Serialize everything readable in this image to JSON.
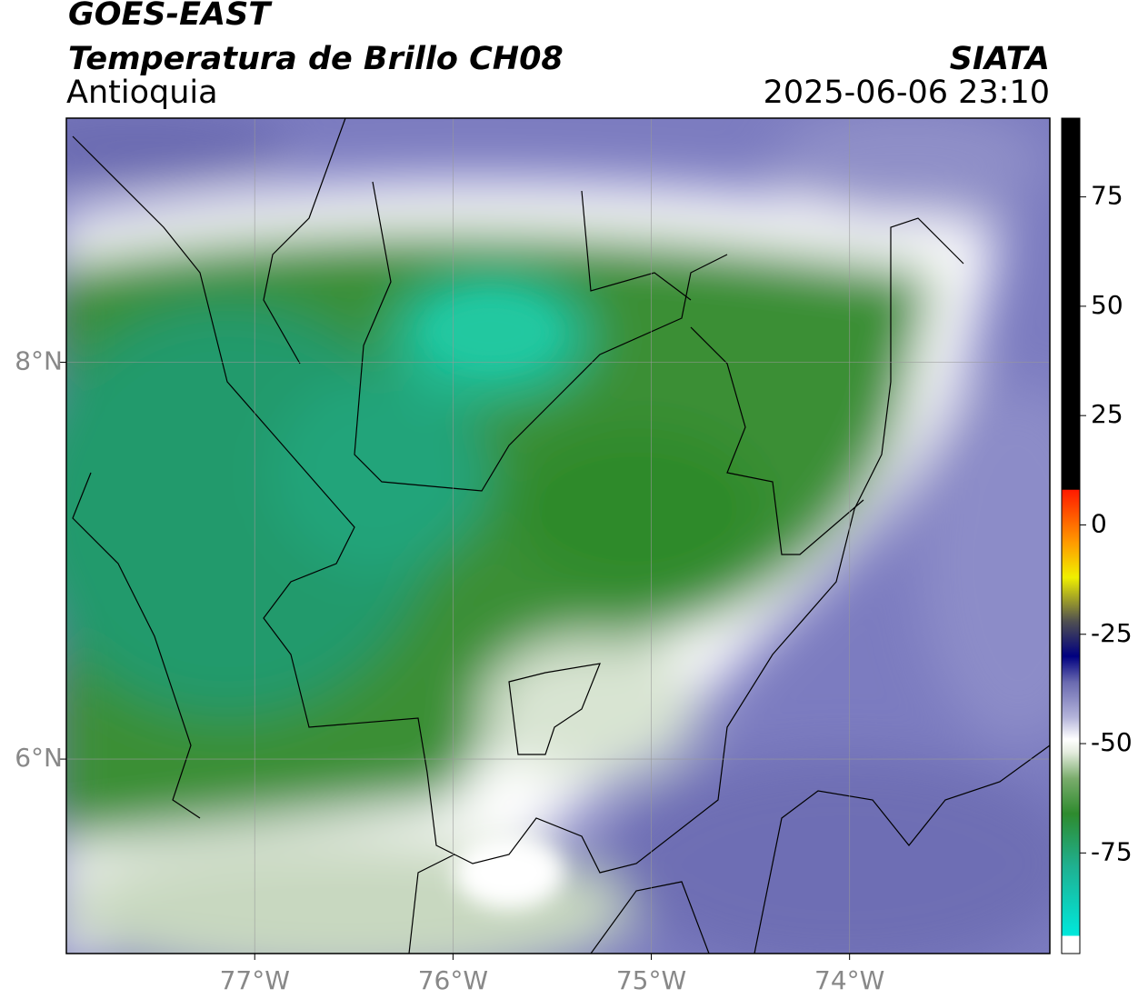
{
  "header": {
    "title": "GOES-EAST",
    "subtitle": "Temperatura de Brillo CH08",
    "region": "Antioquia",
    "source": "SIATA",
    "datetime": "2025-06-06 23:10"
  },
  "map": {
    "xlim": [
      -77.95,
      -72.99
    ],
    "ylim": [
      5.02,
      9.23
    ],
    "xticks": [
      {
        "value": -77,
        "label": "77°W"
      },
      {
        "value": -76,
        "label": "76°W"
      },
      {
        "value": -75,
        "label": "75°W"
      },
      {
        "value": -74,
        "label": "74°W"
      }
    ],
    "yticks": [
      {
        "value": 8,
        "label": "8°N"
      },
      {
        "value": 6,
        "label": "6°N"
      }
    ],
    "grid": true
  },
  "colorbar": {
    "clim": [
      -98,
      93
    ],
    "ticks": [
      75,
      50,
      25,
      0,
      -25,
      -50,
      -75
    ],
    "colormap": [
      {
        "value": -98,
        "color": "#ffffff"
      },
      {
        "value": -94,
        "color": "#ffffff"
      },
      {
        "value": -93.9,
        "color": "#00e8dc"
      },
      {
        "value": -78,
        "color": "#1fb090"
      },
      {
        "value": -66,
        "color": "#2e8b2e"
      },
      {
        "value": -58,
        "color": "#7aac6c"
      },
      {
        "value": -52,
        "color": "#e4ecde"
      },
      {
        "value": -49,
        "color": "#ffffff"
      },
      {
        "value": -44,
        "color": "#b4b4da"
      },
      {
        "value": -36,
        "color": "#6a6ab0"
      },
      {
        "value": -30,
        "color": "#000080"
      },
      {
        "value": -22,
        "color": "#505050"
      },
      {
        "value": -12,
        "color": "#f0f000"
      },
      {
        "value": -4,
        "color": "#ff9a00"
      },
      {
        "value": 8,
        "color": "#ff1a00"
      },
      {
        "value": 8.1,
        "color": "#000000"
      },
      {
        "value": 93,
        "color": "#000000"
      }
    ]
  }
}
